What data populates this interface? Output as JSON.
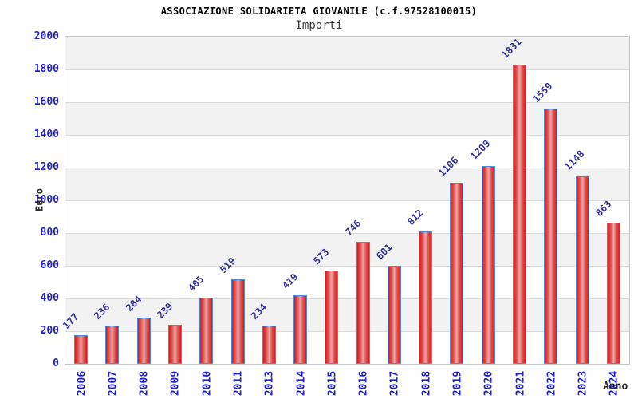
{
  "header": {
    "title": "ASSOCIAZIONE SOLIDARIETA GIOVANILE (c.f.97528100015)",
    "subtitle": "Importi"
  },
  "chart_data": {
    "type": "bar",
    "title": "ASSOCIAZIONE SOLIDARIETA GIOVANILE (c.f.97528100015)",
    "subtitle": "Importi",
    "xlabel": "Anno",
    "ylabel": "Euro",
    "categories": [
      "2006",
      "2007",
      "2008",
      "2009",
      "2010",
      "2011",
      "2013",
      "2014",
      "2015",
      "2016",
      "2017",
      "2018",
      "2019",
      "2020",
      "2021",
      "2022",
      "2023",
      "2024"
    ],
    "values": [
      177,
      236,
      284,
      239,
      405,
      519,
      234,
      419,
      573,
      746,
      601,
      812,
      1106,
      1209,
      1831,
      1559,
      1148,
      863
    ],
    "ylim": [
      0,
      2000
    ],
    "ytick_step": 200,
    "ytick_labels": [
      "0",
      "200",
      "400",
      "600",
      "800",
      "1000",
      "1200",
      "1400",
      "1600",
      "1800",
      "2000"
    ],
    "grid": "horizontal-alternating-bands",
    "legend": "none",
    "colors": {
      "bar_edge_red": "#c21f1f",
      "bar_center": "#efa6a6",
      "bar_border": "#4a8ddc",
      "axis_tick_label": "#2222cc",
      "value_label": "#333399",
      "band_gray": "#f2f2f2",
      "band_white": "#ffffff",
      "gridline": "#dcdcdc",
      "plot_border": "#c6c6c6",
      "title": "#000000",
      "subtitle": "#3c3c3c",
      "axis_title": "#2a2a2a"
    }
  }
}
